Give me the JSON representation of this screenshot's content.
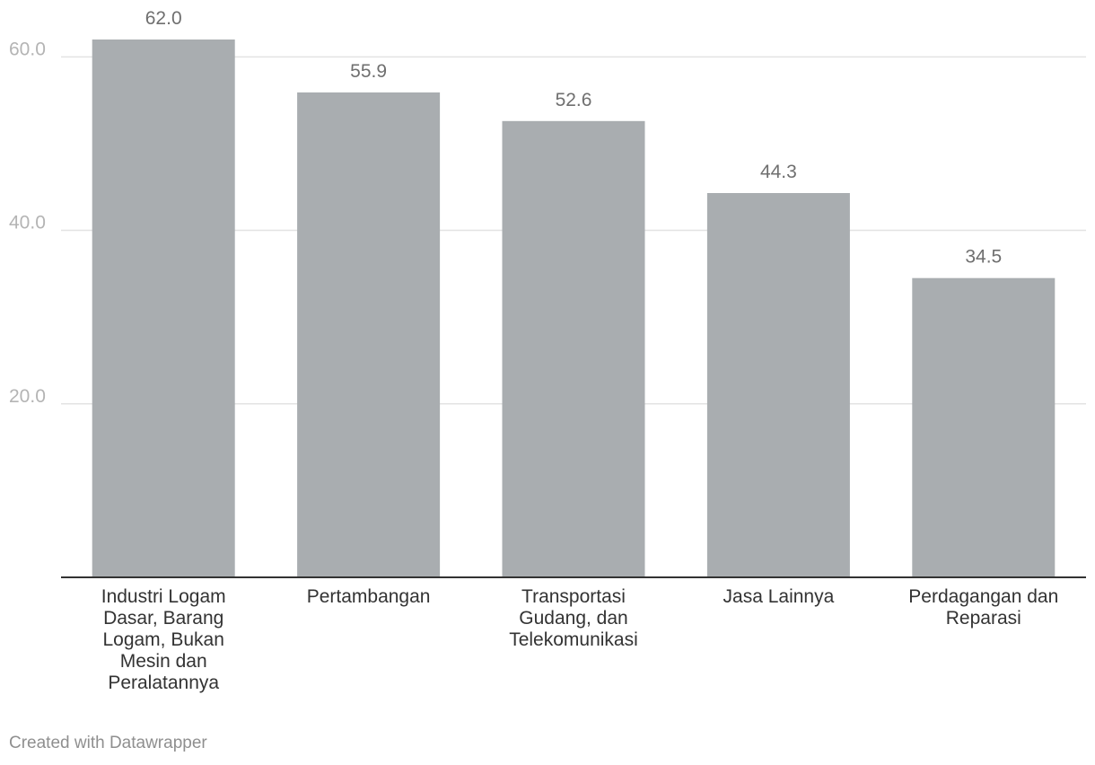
{
  "chart_data": {
    "type": "bar",
    "categories": [
      "Industri Logam Dasar, Barang Logam, Bukan Mesin dan Peralatannya",
      "Pertambangan",
      "Transportasi Gudang, dan Telekomunikasi",
      "Jasa Lainnya",
      "Perdagangan dan Reparasi"
    ],
    "category_lines": [
      [
        "Industri Logam",
        "Dasar, Barang",
        "Logam, Bukan",
        "Mesin dan",
        "Peralatannya"
      ],
      [
        "Pertambangan"
      ],
      [
        "Transportasi",
        "Gudang, dan",
        "Telekomunikasi"
      ],
      [
        "Jasa Lainnya"
      ],
      [
        "Perdagangan dan",
        "Reparasi"
      ]
    ],
    "values": [
      62.0,
      55.9,
      52.6,
      44.3,
      34.5
    ],
    "value_labels": [
      "62.0",
      "55.9",
      "52.6",
      "44.3",
      "34.5"
    ],
    "y_ticks": [
      20.0,
      40.0,
      60.0
    ],
    "y_tick_labels": [
      "20.0",
      "40.0",
      "60.0"
    ],
    "ylim": [
      0,
      62
    ],
    "grid": true,
    "colors": {
      "bar": "#a9adb0"
    },
    "title": "",
    "xlabel": "",
    "ylabel": ""
  },
  "footer": {
    "credit": "Created with Datawrapper"
  }
}
